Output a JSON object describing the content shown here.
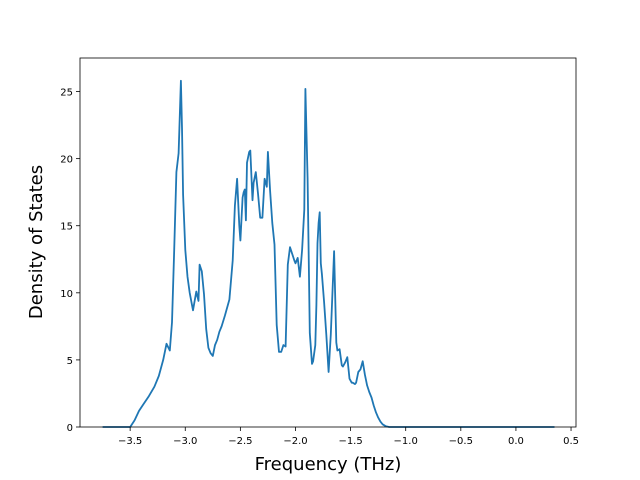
{
  "chart_data": {
    "type": "line",
    "title": "",
    "xlabel": "Frequency (THz)",
    "ylabel": "Density of States",
    "xlim": [
      -3.955,
      0.545
    ],
    "ylim": [
      0,
      27.5
    ],
    "x_ticks": [
      -3.5,
      -3.0,
      -2.5,
      -2.0,
      -1.5,
      -1.0,
      -0.5,
      0.0,
      0.5
    ],
    "x_tick_labels": [
      "−3.5",
      "−3.0",
      "−2.5",
      "−2.0",
      "−1.5",
      "−1.0",
      "−0.5",
      "0.0",
      "0.5"
    ],
    "y_ticks": [
      0,
      5,
      10,
      15,
      20,
      25
    ],
    "y_tick_labels": [
      "0",
      "5",
      "10",
      "15",
      "20",
      "25"
    ],
    "grid": false,
    "series": [
      {
        "color": "#1f77b4",
        "x": [
          -3.75,
          -3.5,
          -3.46,
          -3.42,
          -3.38,
          -3.33,
          -3.28,
          -3.24,
          -3.2,
          -3.17,
          -3.14,
          -3.12,
          -3.1,
          -3.08,
          -3.06,
          -3.04,
          -3.03,
          -3.02,
          -3.0,
          -2.98,
          -2.96,
          -2.93,
          -2.9,
          -2.88,
          -2.87,
          -2.85,
          -2.83,
          -2.81,
          -2.79,
          -2.77,
          -2.75,
          -2.73,
          -2.71,
          -2.69,
          -2.67,
          -2.64,
          -2.6,
          -2.57,
          -2.55,
          -2.53,
          -2.51,
          -2.5,
          -2.49,
          -2.48,
          -2.47,
          -2.46,
          -2.45,
          -2.44,
          -2.42,
          -2.41,
          -2.39,
          -2.38,
          -2.36,
          -2.34,
          -2.32,
          -2.3,
          -2.28,
          -2.26,
          -2.25,
          -2.23,
          -2.21,
          -2.19,
          -2.17,
          -2.15,
          -2.13,
          -2.11,
          -2.09,
          -2.07,
          -2.05,
          -2.03,
          -2.01,
          -2.0,
          -1.98,
          -1.96,
          -1.94,
          -1.92,
          -1.91,
          -1.89,
          -1.87,
          -1.85,
          -1.84,
          -1.82,
          -1.81,
          -1.8,
          -1.79,
          -1.78,
          -1.77,
          -1.76,
          -1.74,
          -1.72,
          -1.7,
          -1.68,
          -1.65,
          -1.63,
          -1.62,
          -1.6,
          -1.58,
          -1.57,
          -1.55,
          -1.53,
          -1.51,
          -1.49,
          -1.48,
          -1.46,
          -1.45,
          -1.43,
          -1.41,
          -1.39,
          -1.37,
          -1.35,
          -1.33,
          -1.31,
          -1.29,
          -1.27,
          -1.25,
          -1.23,
          -1.21,
          -1.18,
          -1.15,
          -1.13,
          -1.11,
          -1.09,
          -1.07,
          -1.05,
          -1.03,
          -1.0,
          -0.95,
          -0.9,
          -0.8,
          -0.7,
          -0.6,
          -0.5,
          -0.4,
          -0.3,
          -0.2,
          -0.1,
          -0.05,
          0.0,
          0.1,
          0.2,
          0.35
        ],
        "y": [
          0.0,
          0.0,
          0.5,
          1.2,
          1.7,
          2.3,
          3.0,
          3.8,
          5.0,
          6.2,
          5.7,
          7.8,
          13.2,
          19.0,
          20.4,
          25.8,
          22.3,
          17.3,
          13.2,
          11.2,
          10.0,
          8.7,
          10.1,
          9.4,
          12.1,
          11.6,
          9.9,
          7.3,
          5.9,
          5.5,
          5.3,
          6.1,
          6.5,
          7.1,
          7.5,
          8.3,
          9.5,
          12.4,
          16.5,
          18.5,
          15.0,
          13.9,
          15.5,
          17.1,
          17.5,
          17.7,
          15.4,
          19.7,
          20.5,
          20.6,
          16.9,
          18.2,
          19.0,
          17.4,
          15.6,
          15.6,
          18.5,
          17.9,
          20.5,
          17.6,
          15.2,
          13.6,
          7.6,
          5.6,
          5.6,
          6.1,
          6.0,
          12.1,
          13.4,
          12.9,
          12.4,
          12.2,
          12.6,
          11.2,
          13.2,
          16.2,
          25.2,
          18.5,
          7.0,
          4.7,
          4.9,
          6.1,
          9.1,
          13.7,
          15.2,
          16.0,
          12.2,
          11.4,
          9.3,
          6.9,
          4.1,
          6.9,
          13.1,
          6.3,
          5.7,
          5.8,
          4.6,
          4.5,
          4.8,
          5.2,
          3.6,
          3.3,
          3.3,
          3.2,
          3.3,
          4.1,
          4.3,
          4.9,
          3.9,
          3.1,
          2.6,
          2.2,
          1.6,
          1.1,
          0.7,
          0.4,
          0.2,
          0.05,
          0.0,
          0.0,
          0.0,
          0.0,
          0.0,
          0.0,
          0.0,
          0.0,
          0.0,
          0.0,
          0.0,
          0.0,
          0.0,
          0.0,
          0.0,
          0.0,
          0.0,
          0.0,
          0.0,
          0.0,
          0.0,
          0.0,
          0.0
        ]
      }
    ]
  }
}
